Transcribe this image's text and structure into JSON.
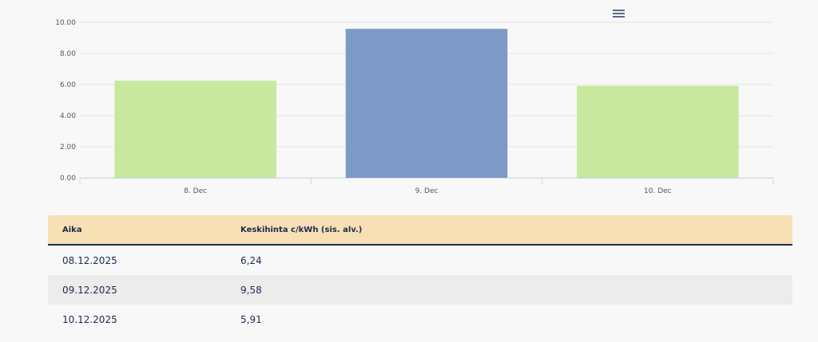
{
  "chart_data": {
    "type": "bar",
    "categories": [
      "8. Dec",
      "9. Dec",
      "10. Dec"
    ],
    "values": [
      6.24,
      9.58,
      5.91
    ],
    "colors": [
      "#c8e89e",
      "#7d9ac6",
      "#c8e89e"
    ],
    "ylim": [
      0,
      10
    ],
    "yticks": [
      "0.00",
      "2.00",
      "4.00",
      "6.00",
      "8.00",
      "10.00"
    ],
    "grid": true,
    "title": "",
    "xlabel": "",
    "ylabel": ""
  },
  "menu": {
    "icon": "hamburger-menu-icon"
  },
  "table": {
    "headers": [
      "Aika",
      "Keskihinta c/kWh (sis. alv.)"
    ],
    "rows": [
      [
        "08.12.2025",
        "6,24"
      ],
      [
        "09.12.2025",
        "9,58"
      ],
      [
        "10.12.2025",
        "5,91"
      ]
    ]
  }
}
